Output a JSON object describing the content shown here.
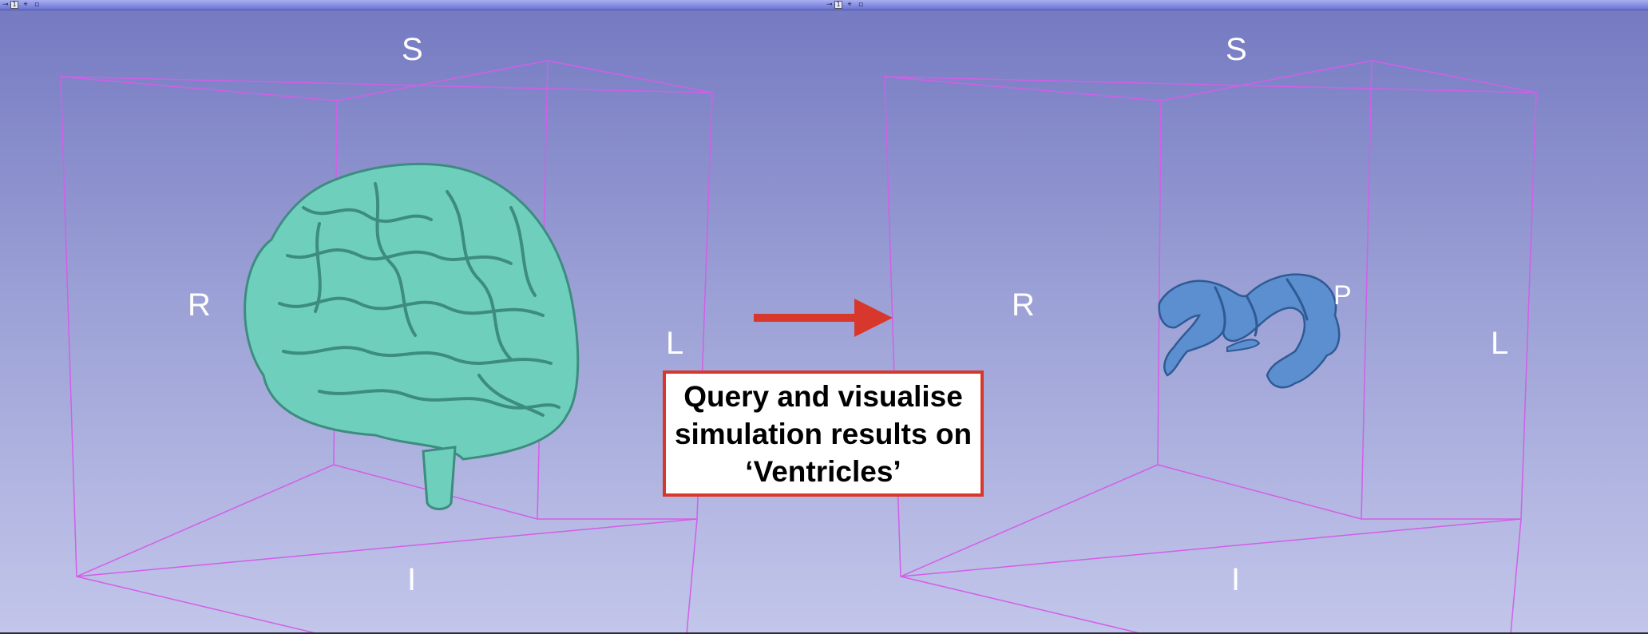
{
  "views": [
    {
      "view_number": "1",
      "labels": {
        "superior": "S",
        "inferior": "I",
        "right": "R",
        "left": "L"
      },
      "model": "brain",
      "model_color": "#6fcfbd"
    },
    {
      "view_number": "1",
      "labels": {
        "superior": "S",
        "inferior": "I",
        "right": "R",
        "left": "L",
        "posterior": "P"
      },
      "model": "ventricles",
      "model_color": "#5b8fd0"
    }
  ],
  "callout": {
    "text": "Query and visualise\nsimulation results on\n‘Ventricles’",
    "border_color": "#d8382c"
  },
  "arrow_color": "#d8382c",
  "bounding_box_color": "#d35ee8",
  "icons": {
    "pin": "pin-icon",
    "link": "link-icon",
    "maximize": "maximize-icon"
  }
}
